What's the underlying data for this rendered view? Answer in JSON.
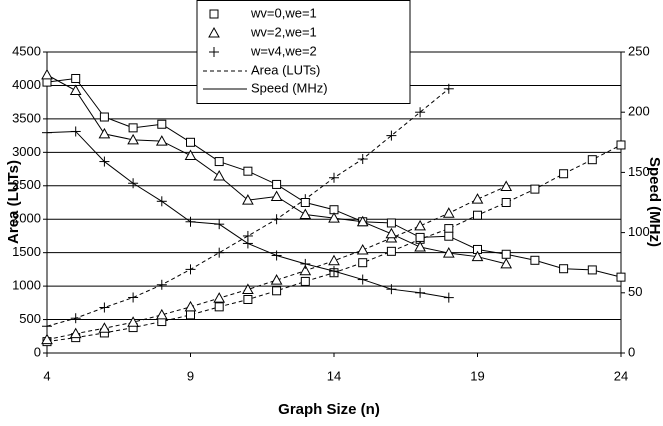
{
  "chart_data": {
    "type": "scatter",
    "x_label": "Graph Size (n)",
    "y_label": "Area (LUTs)",
    "y2_label": "Speed (MHz)",
    "xlim": [
      4,
      24
    ],
    "xticks": [
      4,
      9,
      14,
      19,
      24
    ],
    "ylim": [
      0,
      4500
    ],
    "yticks": [
      0,
      500,
      1000,
      1500,
      2000,
      2500,
      3000,
      3500,
      4000,
      4500
    ],
    "y2lim": [
      0,
      250
    ],
    "y2ticks": [
      0,
      50,
      100,
      150,
      200,
      250
    ],
    "grid": true,
    "legend": {
      "markers": [
        {
          "name": "wv=0,we=1",
          "marker": "square"
        },
        {
          "name": "wv=2,we=1",
          "marker": "triangle"
        },
        {
          "name": "w=v4,we=2",
          "marker": "plus"
        }
      ],
      "lines": [
        {
          "name": "Area (LUTs)",
          "line": "dashed"
        },
        {
          "name": "Speed (MHz)",
          "line": "solid"
        }
      ]
    },
    "series": [
      {
        "marker": "square",
        "line": "dashed",
        "axis": "y",
        "x": [
          4,
          5,
          6,
          7,
          8,
          9,
          10,
          11,
          12,
          13,
          14,
          15,
          16,
          17,
          18,
          19,
          20,
          21,
          22,
          23,
          24
        ],
        "values": [
          170,
          230,
          300,
          380,
          470,
          570,
          690,
          800,
          930,
          1070,
          1200,
          1350,
          1520,
          1700,
          1860,
          2060,
          2250,
          2450,
          2680,
          2890,
          3110
        ]
      },
      {
        "marker": "triangle",
        "line": "dashed",
        "axis": "y",
        "x": [
          4,
          5,
          6,
          7,
          8,
          9,
          10,
          11,
          12,
          13,
          14,
          15,
          16,
          17,
          18,
          19,
          20
        ],
        "values": [
          200,
          290,
          370,
          460,
          570,
          690,
          820,
          950,
          1090,
          1230,
          1380,
          1540,
          1720,
          1900,
          2090,
          2300,
          2490
        ]
      },
      {
        "marker": "plus",
        "line": "dashed",
        "axis": "y",
        "x": [
          4,
          5,
          6,
          7,
          8,
          9,
          10,
          11,
          12,
          13,
          14,
          15,
          16,
          17,
          18
        ],
        "values": [
          400,
          520,
          680,
          830,
          1020,
          1250,
          1500,
          1750,
          2000,
          2300,
          2620,
          2900,
          3250,
          3600,
          3950
        ]
      },
      {
        "marker": "square",
        "line": "solid",
        "axis": "y2",
        "x": [
          4,
          5,
          6,
          7,
          8,
          9,
          10,
          11,
          12,
          13,
          14,
          15,
          16,
          17,
          18,
          19,
          20,
          21,
          22,
          23,
          24
        ],
        "values": [
          225,
          228,
          196,
          187,
          190,
          175,
          159,
          151,
          140,
          125,
          119,
          109,
          108,
          96,
          97,
          86,
          82,
          77,
          70,
          69,
          63
        ]
      },
      {
        "marker": "triangle",
        "line": "solid",
        "axis": "y2",
        "x": [
          4,
          5,
          6,
          7,
          8,
          9,
          10,
          11,
          12,
          13,
          14,
          15,
          16,
          17,
          18,
          19,
          20
        ],
        "values": [
          231,
          218,
          182,
          177,
          176,
          164,
          147,
          127,
          130,
          115,
          112,
          109,
          99,
          88,
          83,
          80,
          74
        ]
      },
      {
        "marker": "plus",
        "line": "solid",
        "axis": "y2",
        "x": [
          4,
          5,
          6,
          7,
          8,
          9,
          10,
          11,
          12,
          13,
          14,
          15,
          16,
          17,
          18
        ],
        "values": [
          183,
          184,
          159,
          141,
          126,
          109,
          107,
          91,
          81,
          74,
          68,
          61,
          53,
          50,
          46
        ]
      }
    ]
  }
}
